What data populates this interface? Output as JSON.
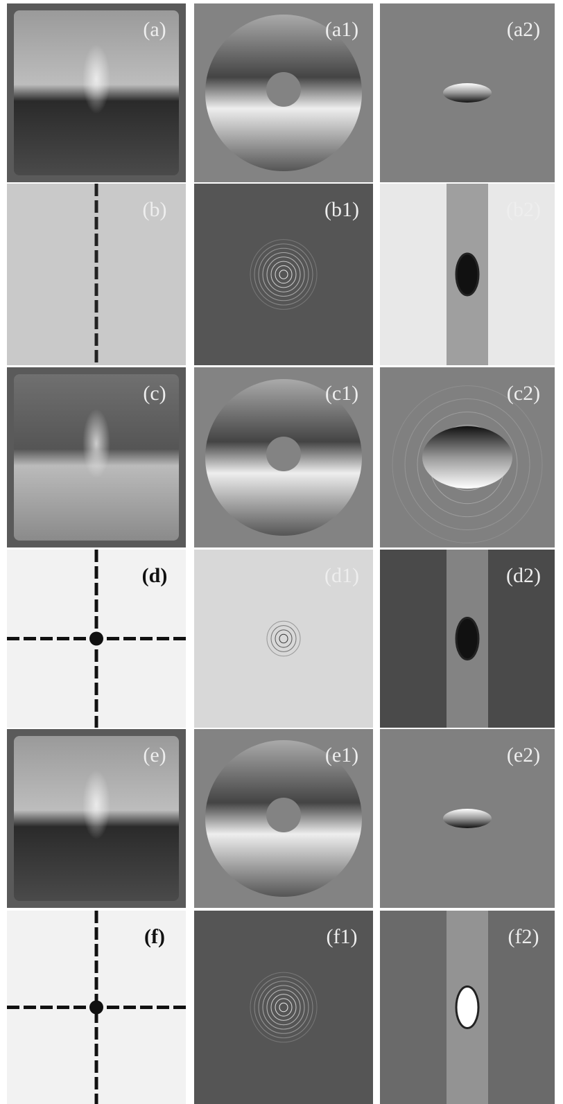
{
  "panels": [
    {
      "label": "(a)"
    },
    {
      "label": "(a1)"
    },
    {
      "label": "(a2)"
    },
    {
      "label": "(b)"
    },
    {
      "label": "(b1)"
    },
    {
      "label": "(b2)"
    },
    {
      "label": "(c)"
    },
    {
      "label": "(c1)"
    },
    {
      "label": "(c2)"
    },
    {
      "label": "(d)"
    },
    {
      "label": "(d1)"
    },
    {
      "label": "(d2)"
    },
    {
      "label": "(e)"
    },
    {
      "label": "(e1)"
    },
    {
      "label": "(e2)"
    },
    {
      "label": "(f)"
    },
    {
      "label": "(f1)"
    },
    {
      "label": "(f2)"
    }
  ]
}
